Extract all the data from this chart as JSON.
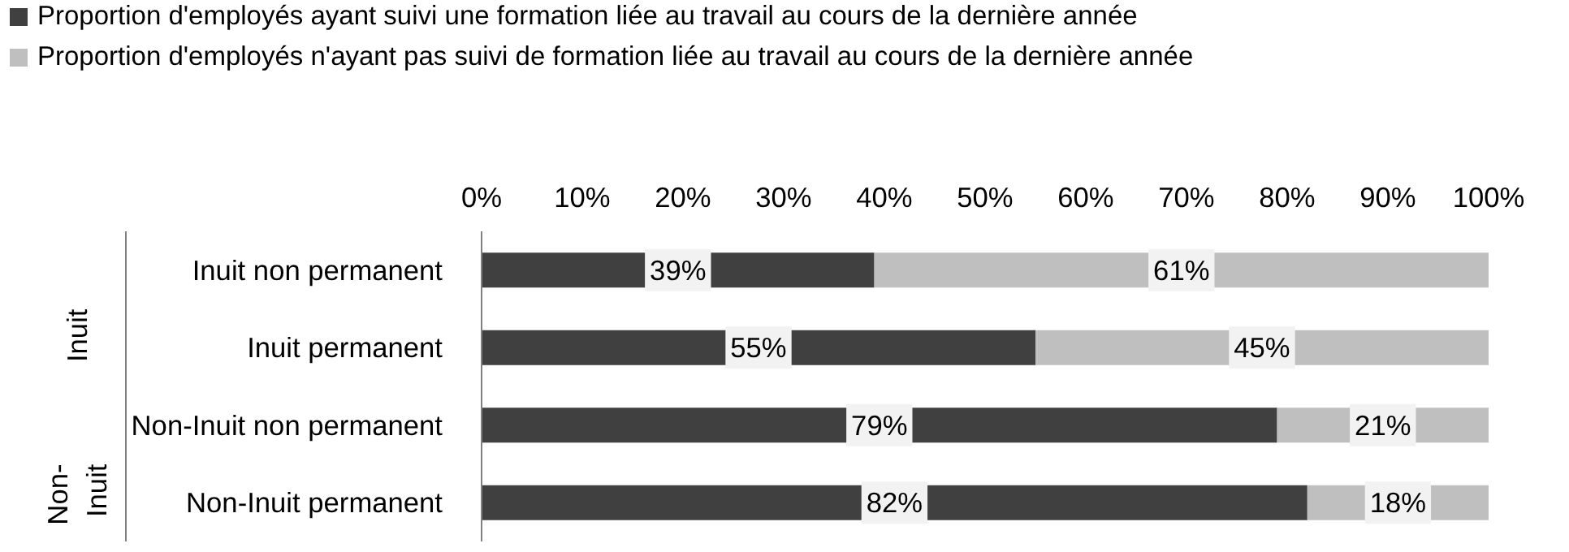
{
  "chart_data": {
    "type": "bar",
    "orientation": "horizontal",
    "stacked": true,
    "categories": [
      "Inuit non permanent",
      "Inuit permanent",
      "Non-Inuit non permanent",
      "Non-Inuit permanent"
    ],
    "annotations": [
      "Inuit",
      "Non-Inuit"
    ],
    "series": [
      {
        "name": "Proportion d'employés ayant suivi une formation liée au travail au cours de la dernière année",
        "color": "#404040",
        "values": [
          39,
          55,
          79,
          82
        ],
        "value_labels": [
          "39%",
          "55%",
          "79%",
          "82%"
        ]
      },
      {
        "name": "Proportion d'employés n'ayant pas suivi de formation liée au travail au cours de la dernière année",
        "color": "#bfbfbf",
        "values": [
          61,
          45,
          21,
          18
        ],
        "value_labels": [
          "61%",
          "45%",
          "21%",
          "18%"
        ]
      }
    ],
    "xlim": [
      0,
      100
    ],
    "xticks": [
      {
        "value": 0,
        "label": "0%"
      },
      {
        "value": 10,
        "label": "10%"
      },
      {
        "value": 20,
        "label": "20%"
      },
      {
        "value": 30,
        "label": "30%"
      },
      {
        "value": 40,
        "label": "40%"
      },
      {
        "value": 50,
        "label": "50%"
      },
      {
        "value": 60,
        "label": "60%"
      },
      {
        "value": 70,
        "label": "70%"
      },
      {
        "value": 80,
        "label": "80%"
      },
      {
        "value": 90,
        "label": "90%"
      },
      {
        "value": 100,
        "label": "100%"
      }
    ],
    "grid": false,
    "legend": "top"
  }
}
